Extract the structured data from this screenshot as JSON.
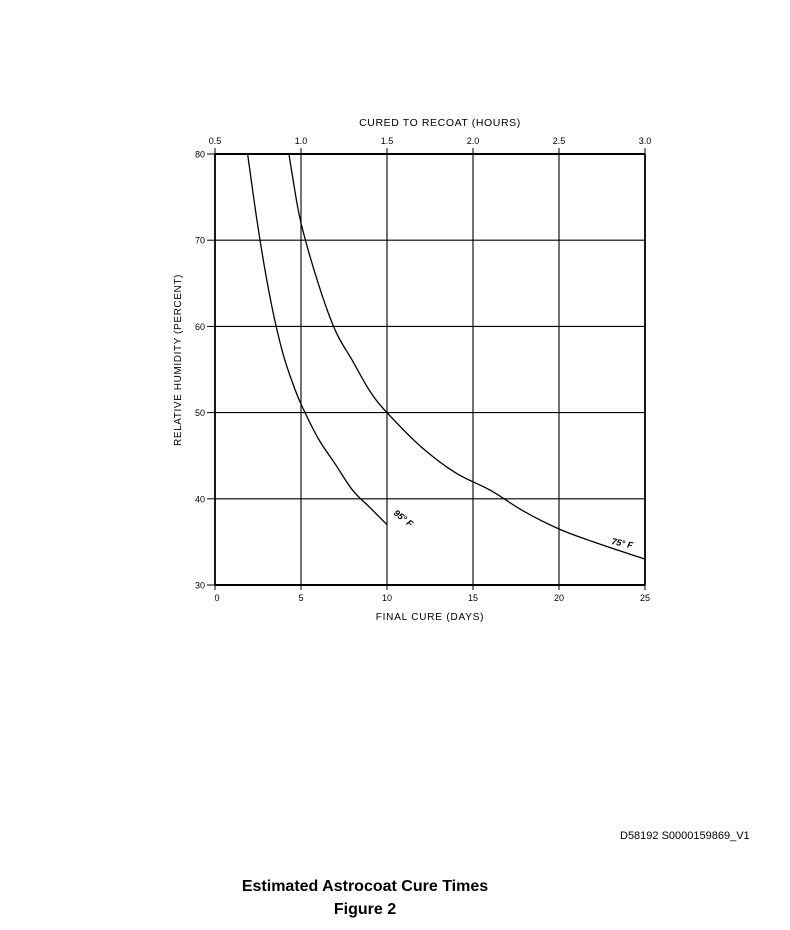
{
  "chart_data": {
    "type": "line",
    "top_axis": {
      "label": "CURED TO RECOAT (HOURS)",
      "ticks": [
        "0.5",
        "1.0",
        "1.5",
        "2.0",
        "2.5",
        "3.0"
      ],
      "range": [
        0.5,
        3.0
      ]
    },
    "x_axis": {
      "label": "FINAL CURE (DAYS)",
      "ticks": [
        "0",
        "5",
        "10",
        "15",
        "20",
        "25"
      ],
      "range": [
        0,
        25
      ]
    },
    "y_axis": {
      "label": "RELATIVE HUMIDITY (PERCENT)",
      "ticks": [
        "30",
        "40",
        "50",
        "60",
        "70",
        "80"
      ],
      "range": [
        30,
        80
      ]
    },
    "grid": true,
    "series": [
      {
        "name": "95° F",
        "x": [
          1.9,
          2.0,
          2.5,
          3.0,
          3.5,
          4.0,
          4.5,
          5.0,
          6.0,
          7.0,
          8.0,
          9.0,
          10.0
        ],
        "y": [
          80,
          78.5,
          71.5,
          65.5,
          60.5,
          56.5,
          53.5,
          51,
          47,
          44,
          41,
          39,
          37
        ]
      },
      {
        "name": "75° F",
        "x": [
          4.3,
          4.5,
          5.0,
          6.0,
          7.0,
          8.0,
          9.0,
          10.0,
          12.0,
          14.0,
          16.0,
          18.0,
          20.0,
          22.0,
          25.0
        ],
        "y": [
          80,
          77.5,
          72,
          65,
          59.5,
          56,
          52.5,
          50,
          46,
          43,
          41,
          38.5,
          36.5,
          35,
          33
        ]
      }
    ]
  },
  "reference_code": "D58192 S0000159869_V1",
  "caption_title": "Estimated Astrocoat Cure Times",
  "caption_figure": "Figure 2"
}
